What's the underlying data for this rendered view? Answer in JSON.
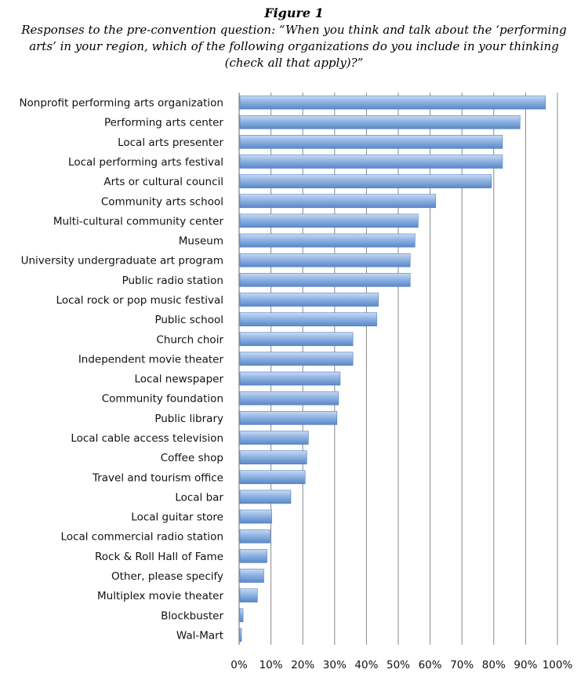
{
  "figure_label": "Figure 1",
  "chart_data": {
    "type": "bar",
    "orientation": "horizontal",
    "title": "Responses to the pre-convention question: “When you think and talk about the ‘performing arts’ in your region, which of the following organizations do you include in your thinking (check all that apply)?”",
    "categories": [
      "Nonprofit performing arts organization",
      "Performing arts center",
      "Local arts presenter",
      "Local performing arts festival",
      "Arts or cultural council",
      "Community arts school",
      "Multi-cultural community center",
      "Museum",
      "University undergraduate art program",
      "Public radio station",
      "Local rock or pop music festival",
      "Public school",
      "Church choir",
      "Independent movie theater",
      "Local newspaper",
      "Community foundation",
      "Public library",
      "Local cable access television",
      "Coffee shop",
      "Travel and tourism office",
      "Local bar",
      "Local guitar store",
      "Local commercial radio station",
      "Rock & Roll Hall of Fame",
      "Other, please specify",
      "Multiplex movie theater",
      "Blockbuster",
      "Wal-Mart"
    ],
    "values": [
      96,
      88,
      82.5,
      82.5,
      79,
      61.5,
      56,
      55,
      53.5,
      53.5,
      43.5,
      43,
      35.5,
      35.5,
      31.5,
      31,
      30.5,
      21.5,
      21,
      20.5,
      16,
      10,
      9.5,
      8.5,
      7.5,
      5.5,
      1,
      0.5
    ],
    "xlim": [
      0,
      100
    ],
    "xticks": [
      "0%",
      "10%",
      "20%",
      "30%",
      "40%",
      "50%",
      "60%",
      "70%",
      "80%",
      "90%",
      "100%"
    ],
    "grid": true,
    "colors": {
      "bar": "#7ea6dc",
      "bar_highlight": "#c9dbf3",
      "bar_shadow": "#4f7fc0",
      "grid": "#888888"
    }
  }
}
